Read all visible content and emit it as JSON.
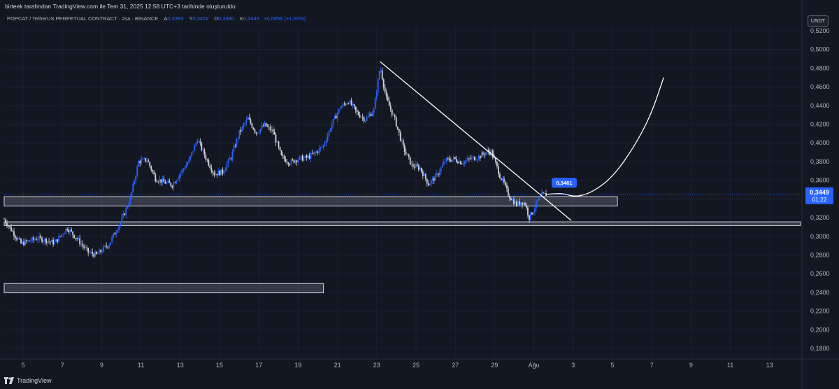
{
  "header": {
    "attribution": "birteek tarafından TradingView.com ile Tem 31, 2025 12:58 UTC+3 tarihinde oluşturuldu"
  },
  "symbol_bar": {
    "symbol": "POPCAT / TetherUS PERPETUAL CONTRACT · 2sa · BINANCE",
    "open_label": "A",
    "open_value": "0,3393",
    "high_label": "Y",
    "high_value": "0,3452",
    "low_label": "D",
    "low_value": "0,3380",
    "close_label": "K",
    "close_value": "0,3449",
    "change": "+0,0056 (+1,65%)"
  },
  "currency_button": "USDT",
  "price_tag": {
    "price": "0,3449",
    "countdown": "01:22",
    "color": "#2962ff"
  },
  "annotation_label": "0,3461",
  "footer": {
    "brand": "TradingView"
  },
  "colors": {
    "background": "#131722",
    "candle": "#d1d4dc",
    "accent": "#2962ff",
    "grid": "#1e2230"
  },
  "chart_data": {
    "type": "candlestick",
    "ylim": [
      0.17,
      0.53
    ],
    "y_ticks": [
      "0,5200",
      "0,5000",
      "0,4800",
      "0,4600",
      "0,4400",
      "0,4200",
      "0,4000",
      "0,3800",
      "0,3600",
      "0,3400",
      "0,3200",
      "0,3000",
      "0,2800",
      "0,2600",
      "0,2400",
      "0,2200",
      "0,2000",
      "0,1800"
    ],
    "x_ticks": [
      "5",
      "7",
      "9",
      "11",
      "13",
      "15",
      "17",
      "19",
      "21",
      "23",
      "25",
      "27",
      "29",
      "Ağu",
      "3",
      "5",
      "7",
      "9",
      "11",
      "13"
    ],
    "price_path": [
      [
        0,
        0.318
      ],
      [
        4,
        0.292
      ],
      [
        8,
        0.298
      ],
      [
        12,
        0.293
      ],
      [
        15,
        0.309
      ],
      [
        17,
        0.299
      ],
      [
        20,
        0.283
      ],
      [
        22,
        0.28
      ],
      [
        25,
        0.292
      ],
      [
        28,
        0.318
      ],
      [
        30,
        0.34
      ],
      [
        32,
        0.38
      ],
      [
        34,
        0.382
      ],
      [
        36,
        0.362
      ],
      [
        38,
        0.358
      ],
      [
        40,
        0.355
      ],
      [
        42,
        0.368
      ],
      [
        44,
        0.381
      ],
      [
        46,
        0.404
      ],
      [
        48,
        0.384
      ],
      [
        50,
        0.367
      ],
      [
        52,
        0.369
      ],
      [
        54,
        0.385
      ],
      [
        56,
        0.411
      ],
      [
        58,
        0.426
      ],
      [
        60,
        0.411
      ],
      [
        62,
        0.419
      ],
      [
        64,
        0.412
      ],
      [
        66,
        0.385
      ],
      [
        68,
        0.379
      ],
      [
        70,
        0.383
      ],
      [
        72,
        0.384
      ],
      [
        74,
        0.389
      ],
      [
        76,
        0.397
      ],
      [
        78,
        0.42
      ],
      [
        80,
        0.438
      ],
      [
        82,
        0.445
      ],
      [
        84,
        0.432
      ],
      [
        86,
        0.425
      ],
      [
        88,
        0.435
      ],
      [
        89.5,
        0.482
      ],
      [
        91,
        0.447
      ],
      [
        93,
        0.425
      ],
      [
        95,
        0.395
      ],
      [
        97,
        0.376
      ],
      [
        99,
        0.373
      ],
      [
        101,
        0.356
      ],
      [
        103,
        0.365
      ],
      [
        105,
        0.381
      ],
      [
        107,
        0.383
      ],
      [
        109,
        0.379
      ],
      [
        111,
        0.383
      ],
      [
        113,
        0.385
      ],
      [
        115,
        0.391
      ],
      [
        116,
        0.39
      ],
      [
        117,
        0.378
      ],
      [
        118,
        0.365
      ],
      [
        119,
        0.356
      ],
      [
        120,
        0.345
      ],
      [
        121,
        0.339
      ],
      [
        122,
        0.334
      ],
      [
        123,
        0.337
      ],
      [
        124,
        0.335
      ],
      [
        125,
        0.32
      ],
      [
        126,
        0.328
      ],
      [
        127,
        0.338
      ],
      [
        128,
        0.344
      ],
      [
        129,
        0.3449
      ]
    ],
    "zones": [
      {
        "from_x": 0,
        "to_x": 146,
        "low": 0.3325,
        "high": 0.3425
      },
      {
        "from_x": 0,
        "to_x": 190,
        "low": 0.3115,
        "high": 0.3155
      },
      {
        "from_x": 0,
        "to_x": 76,
        "low": 0.2395,
        "high": 0.2495
      }
    ],
    "trendline": [
      [
        89.5,
        0.487
      ],
      [
        135,
        0.317
      ]
    ],
    "projection": [
      [
        129,
        0.3449
      ],
      [
        133,
        0.3461
      ],
      [
        136,
        0.342
      ],
      [
        140,
        0.347
      ],
      [
        145,
        0.364
      ],
      [
        150,
        0.396
      ],
      [
        154,
        0.43
      ],
      [
        157,
        0.47
      ]
    ],
    "x_day_ticks_index": [
      5,
      14,
      23,
      32,
      41,
      50,
      59,
      68,
      77,
      86,
      95,
      104,
      113,
      122,
      131,
      140,
      149,
      158,
      167,
      176
    ]
  }
}
